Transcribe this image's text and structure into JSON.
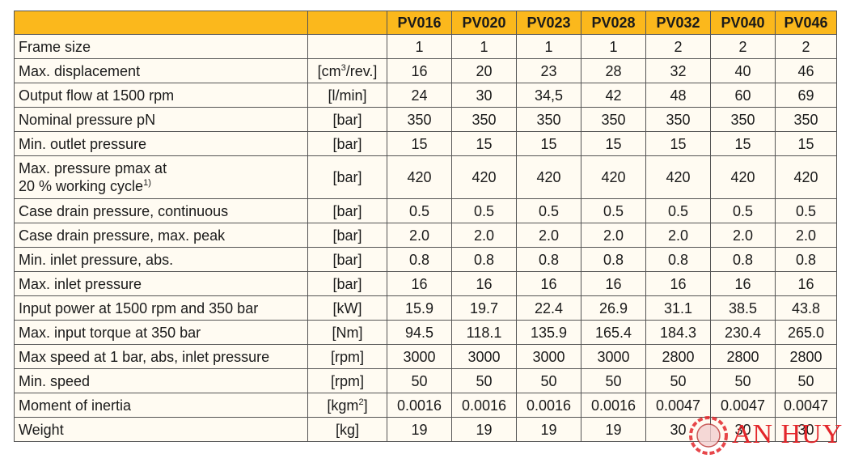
{
  "table": {
    "header": [
      "",
      "",
      "PV016",
      "PV020",
      "PV023",
      "PV028",
      "PV032",
      "PV040",
      "PV046"
    ],
    "rows": [
      {
        "label": "Frame size",
        "unit": "",
        "values": [
          "1",
          "1",
          "1",
          "1",
          "2",
          "2",
          "2"
        ]
      },
      {
        "label": "Max. displacement",
        "unit": [
          {
            "text": "[cm"
          },
          {
            "sup": "3"
          },
          {
            "text": "/rev.]"
          }
        ],
        "values": [
          "16",
          "20",
          "23",
          "28",
          "32",
          "40",
          "46"
        ]
      },
      {
        "label": "Output flow at 1500 rpm",
        "unit": "[l/min]",
        "values": [
          "24",
          "30",
          "34,5",
          "42",
          "48",
          "60",
          "69"
        ]
      },
      {
        "label": "Nominal pressure pN",
        "unit": "[bar]",
        "values": [
          "350",
          "350",
          "350",
          "350",
          "350",
          "350",
          "350"
        ]
      },
      {
        "label": "Min. outlet pressure",
        "unit": "[bar]",
        "values": [
          "15",
          "15",
          "15",
          "15",
          "15",
          "15",
          "15"
        ]
      },
      {
        "label": [
          {
            "line": "Max. pressure pmax at"
          },
          {
            "text": "20 % working cycle"
          },
          {
            "sup": "1)"
          }
        ],
        "unit": "[bar]",
        "values": [
          "420",
          "420",
          "420",
          "420",
          "420",
          "420",
          "420"
        ]
      },
      {
        "label": "Case drain pressure, continuous",
        "unit": "[bar]",
        "values": [
          "0.5",
          "0.5",
          "0.5",
          "0.5",
          "0.5",
          "0.5",
          "0.5"
        ]
      },
      {
        "label": "Case drain pressure, max. peak",
        "unit": "[bar]",
        "values": [
          "2.0",
          "2.0",
          "2.0",
          "2.0",
          "2.0",
          "2.0",
          "2.0"
        ]
      },
      {
        "label": "Min. inlet pressure, abs.",
        "unit": "[bar]",
        "values": [
          "0.8",
          "0.8",
          "0.8",
          "0.8",
          "0.8",
          "0.8",
          "0.8"
        ]
      },
      {
        "label": "Max. inlet pressure",
        "unit": "[bar]",
        "values": [
          "16",
          "16",
          "16",
          "16",
          "16",
          "16",
          "16"
        ]
      },
      {
        "label": "Input power at 1500 rpm and 350 bar",
        "unit": "[kW]",
        "values": [
          "15.9",
          "19.7",
          "22.4",
          "26.9",
          "31.1",
          "38.5",
          "43.8"
        ]
      },
      {
        "label": "Max. input torque at 350 bar",
        "unit": "[Nm]",
        "values": [
          "94.5",
          "118.1",
          "135.9",
          "165.4",
          "184.3",
          "230.4",
          "265.0"
        ]
      },
      {
        "label": "Max speed at 1 bar, abs, inlet pressure",
        "unit": "[rpm]",
        "values": [
          "3000",
          "3000",
          "3000",
          "3000",
          "2800",
          "2800",
          "2800"
        ]
      },
      {
        "label": "Min. speed",
        "unit": "[rpm]",
        "values": [
          "50",
          "50",
          "50",
          "50",
          "50",
          "50",
          "50"
        ]
      },
      {
        "label": "Moment of inertia",
        "unit": [
          {
            "text": "[kgm"
          },
          {
            "sup": "2"
          },
          {
            "text": "]"
          }
        ],
        "values": [
          "0.0016",
          "0.0016",
          "0.0016",
          "0.0016",
          "0.0047",
          "0.0047",
          "0.0047"
        ]
      },
      {
        "label": "Weight",
        "unit": "[kg]",
        "values": [
          "19",
          "19",
          "19",
          "19",
          "30",
          "30",
          "30"
        ]
      }
    ]
  },
  "watermark": "AN HUY"
}
